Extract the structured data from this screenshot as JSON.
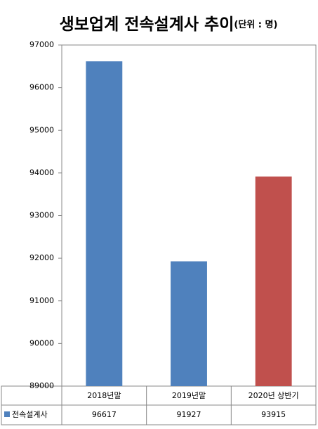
{
  "chart_data": {
    "type": "bar",
    "title": "생보업계 전속설계사 추이",
    "subtitle": "(단위 : 명)",
    "categories": [
      "2018년말",
      "2019년말",
      "2020년 상반기"
    ],
    "series": [
      {
        "name": "전속설계사",
        "color": "#4f81bd",
        "values": [
          96617,
          91927,
          93915
        ],
        "point_colors": [
          "#4f81bd",
          "#4f81bd",
          "#c0504d"
        ]
      }
    ],
    "ylim": [
      89000,
      97000
    ],
    "yticks": [
      89000,
      90000,
      91000,
      92000,
      93000,
      94000,
      95000,
      96000,
      97000
    ],
    "grid": false
  }
}
